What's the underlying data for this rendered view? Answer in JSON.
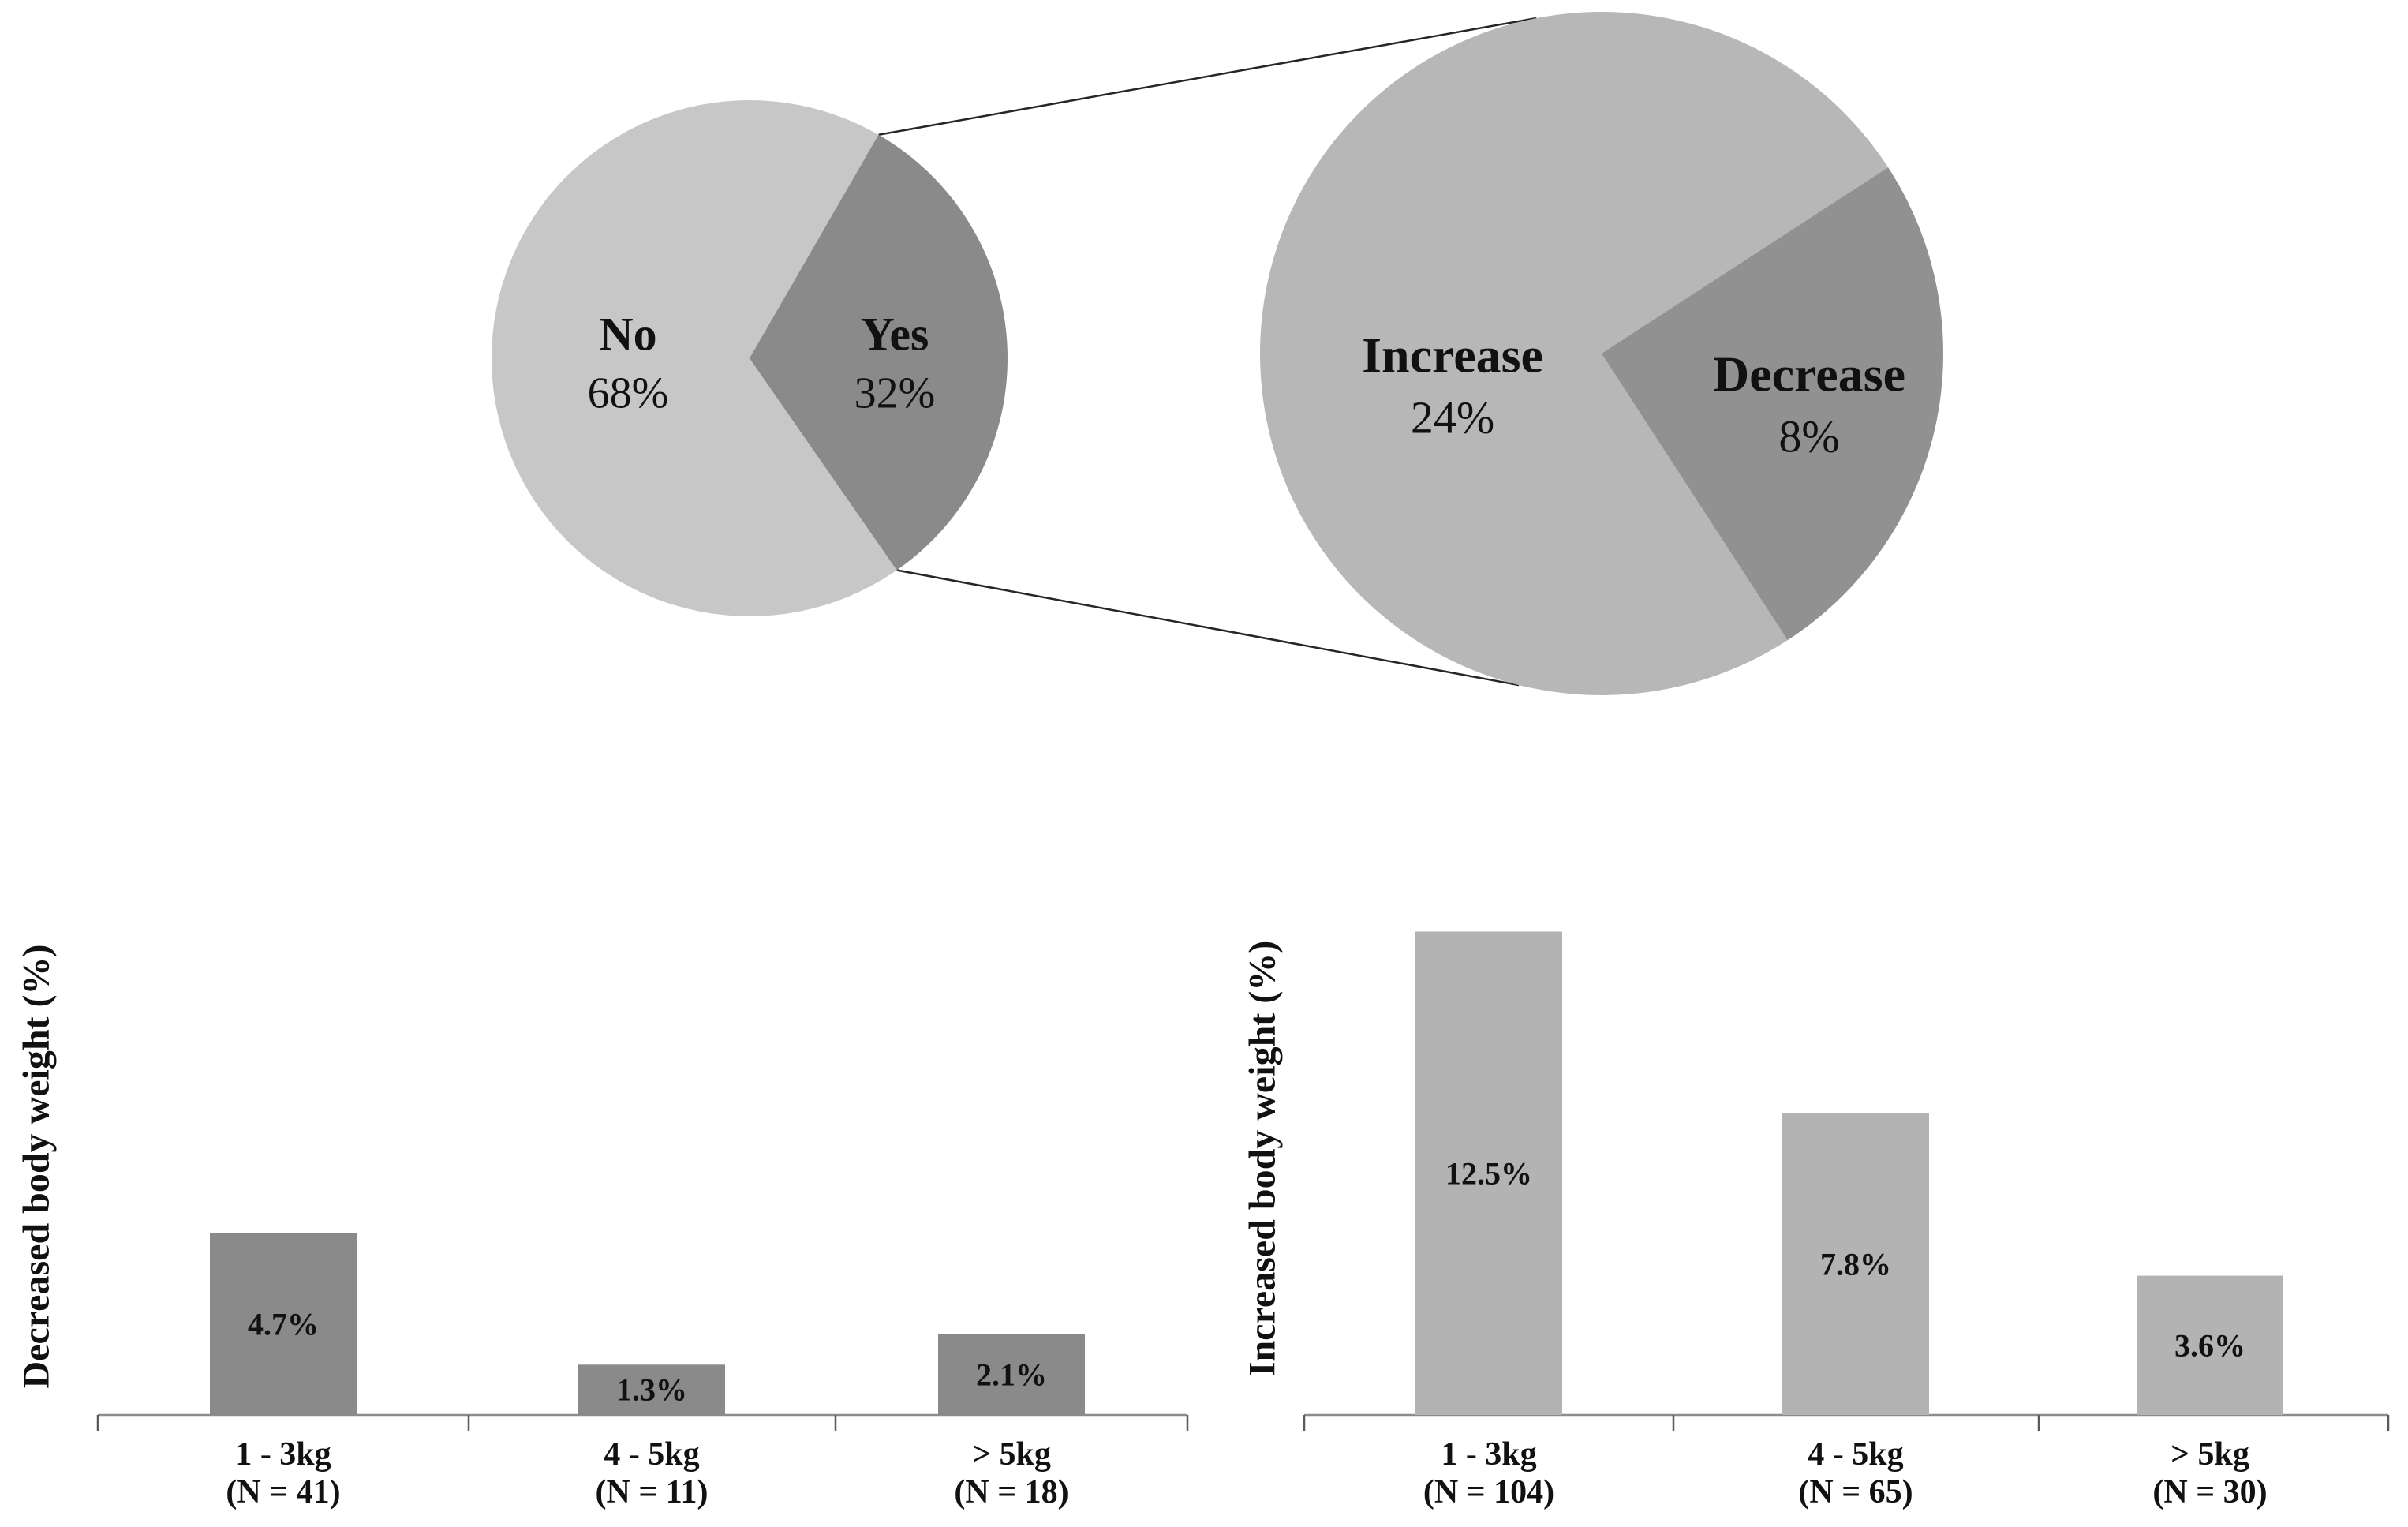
{
  "chart_data": [
    {
      "id": "primary-pie",
      "type": "pie",
      "role": "Primary pie of pie-of-pie: whether body weight changed",
      "slices": [
        {
          "label": "No",
          "value": 68,
          "pct_label": "68%",
          "color": "#c7c7c7"
        },
        {
          "label": "Yes",
          "value": 32,
          "pct_label": "32%",
          "color": "#8a8a8a"
        }
      ],
      "legend": "none",
      "grid": false
    },
    {
      "id": "secondary-pie",
      "type": "pie",
      "role": "Secondary pie expanding the Yes 32% slice",
      "slices": [
        {
          "label": "Increase",
          "value": 24,
          "pct_label": "24%",
          "color": "#b7b7b7"
        },
        {
          "label": "Decrease",
          "value": 8,
          "pct_label": "8%",
          "color": "#919191"
        }
      ],
      "legend": "none",
      "grid": false
    },
    {
      "id": "decreased-bar-chart",
      "type": "bar",
      "ylabel": "Decreased body weight (%)",
      "xlabel": "",
      "categories": [
        "1 - 3kg",
        "4 - 5kg",
        "> 5kg"
      ],
      "category_n_labels": [
        "(N = 41)",
        "(N = 11)",
        "(N = 18)"
      ],
      "n_values": [
        41,
        11,
        18
      ],
      "values": [
        4.7,
        1.3,
        2.1
      ],
      "value_labels": [
        "4.7%",
        "1.3%",
        "2.1%"
      ],
      "bar_color": "#8a8a8a",
      "ylim": [
        0,
        13.5
      ],
      "grid": false,
      "legend": "none"
    },
    {
      "id": "increased-bar-chart",
      "type": "bar",
      "ylabel": "Increased body weight (%)",
      "xlabel": "",
      "categories": [
        "1 - 3kg",
        "4 - 5kg",
        "> 5kg"
      ],
      "category_n_labels": [
        "(N = 104)",
        "(N = 65)",
        "(N = 30)"
      ],
      "n_values": [
        104,
        65,
        30
      ],
      "values": [
        12.5,
        7.8,
        3.6
      ],
      "value_labels": [
        "12.5%",
        "7.8%",
        "3.6%"
      ],
      "bar_color": "#b3b3b3",
      "ylim": [
        0,
        13.5
      ],
      "grid": false,
      "legend": "none"
    }
  ],
  "styles": {
    "background": "#ffffff",
    "text_color": "#111111",
    "axis_color": "#8c8c8c",
    "tick_color": "#5a5a5a",
    "connector_color": "#262626"
  }
}
